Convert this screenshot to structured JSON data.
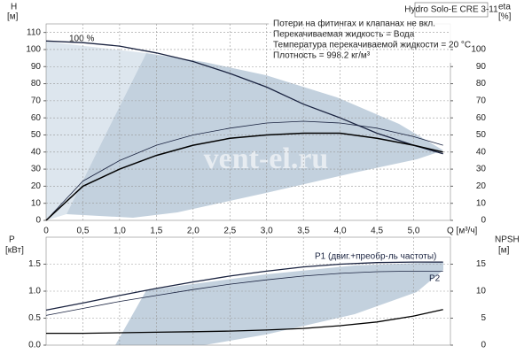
{
  "chart_data": [
    {
      "type": "line",
      "title": "Hydro Solo-E CRE 3-11",
      "notes": [
        "Потери на фитингах и клапанах не вкл.",
        "Перекачиваемая жидкость = Вода",
        "Температура перекачиваемой жидкости = 20 °C",
        "Плотность = 998.2 кг/м³"
      ],
      "annotation": "100 %",
      "watermark": "vent-el.ru",
      "y_label": "H",
      "y_unit": "[м]",
      "y2_label": "eta",
      "y2_unit": "[%]",
      "x_label": "Q [м³/ч]",
      "x": [
        0,
        0.5,
        1,
        1.5,
        2,
        2.5,
        3,
        3.5,
        4,
        4.5,
        5,
        5.4
      ],
      "xlim": [
        0,
        5.5
      ],
      "xticks": [
        0,
        {
          "value": 0.5,
          "label": "0,5"
        },
        {
          "value": 1,
          "label": "1,0"
        },
        {
          "value": 1.5,
          "label": "1,5"
        },
        {
          "value": 2,
          "label": "2,0"
        },
        {
          "value": 2.5,
          "label": "2,5"
        },
        {
          "value": 3,
          "label": "3,0"
        },
        {
          "value": 3.5,
          "label": "3,5"
        },
        {
          "value": 4,
          "label": "4,0"
        },
        {
          "value": 4.5,
          "label": "4,5"
        },
        {
          "value": 5,
          "label": "5,0"
        }
      ],
      "ylim": [
        0,
        115
      ],
      "yticks": [
        0,
        10,
        20,
        30,
        40,
        50,
        60,
        70,
        80,
        90,
        100,
        110
      ],
      "y2lim": [
        0,
        115
      ],
      "y2ticks": [
        0,
        10,
        20,
        30,
        40,
        50,
        60,
        70,
        80,
        90,
        100
      ],
      "grid": true,
      "series": [
        {
          "color": "#1a2340",
          "width": 1.3,
          "values": [
            105,
            104,
            102,
            98,
            93,
            86,
            78,
            68,
            60,
            51,
            44,
            39
          ]
        },
        {
          "color": "#1a2340",
          "width": 0.8,
          "axis": "y2",
          "values": [
            0,
            23,
            35,
            44,
            50,
            54,
            57,
            58,
            57,
            54,
            49,
            44
          ]
        },
        {
          "color": "#000000",
          "width": 1.5,
          "axis": "y2",
          "values": [
            0,
            20,
            30,
            38,
            44,
            48,
            50,
            51,
            51,
            48,
            44,
            40
          ]
        }
      ]
    },
    {
      "type": "line",
      "y_label": "P",
      "y_unit": "[кВт]",
      "y2_label": "NPSH",
      "y2_unit": "[м]",
      "x": [
        0,
        0.5,
        1,
        1.5,
        2,
        2.5,
        3,
        3.5,
        4,
        4.5,
        5,
        5.4
      ],
      "xlim": [
        0,
        5.5
      ],
      "ylim": [
        0,
        2.0
      ],
      "yticks": [
        {
          "value": 0,
          "label": "0.0"
        },
        {
          "value": 0.5,
          "label": "0.5"
        },
        {
          "value": 1,
          "label": "1.0"
        },
        {
          "value": 1.5,
          "label": "1.5"
        }
      ],
      "y2lim": [
        0,
        20
      ],
      "y2ticks": [
        0,
        5,
        10,
        15
      ],
      "grid": true,
      "series": [
        {
          "name": "P1 (двиг.+преобр-ль частоты)",
          "color": "#1a2340",
          "width": 1.3,
          "values": [
            0.65,
            0.78,
            0.92,
            1.05,
            1.17,
            1.28,
            1.37,
            1.45,
            1.5,
            1.53,
            1.54,
            1.54
          ]
        },
        {
          "name": "P2",
          "color": "#1a2340",
          "width": 0.8,
          "values": [
            0.55,
            0.68,
            0.81,
            0.92,
            1.03,
            1.13,
            1.21,
            1.28,
            1.33,
            1.36,
            1.37,
            1.37
          ]
        },
        {
          "color": "#000000",
          "width": 1.3,
          "axis": "y2",
          "values": [
            2.2,
            2.2,
            2.3,
            2.4,
            2.5,
            2.6,
            2.8,
            3.1,
            3.6,
            4.3,
            5.4,
            6.6
          ]
        }
      ]
    }
  ]
}
